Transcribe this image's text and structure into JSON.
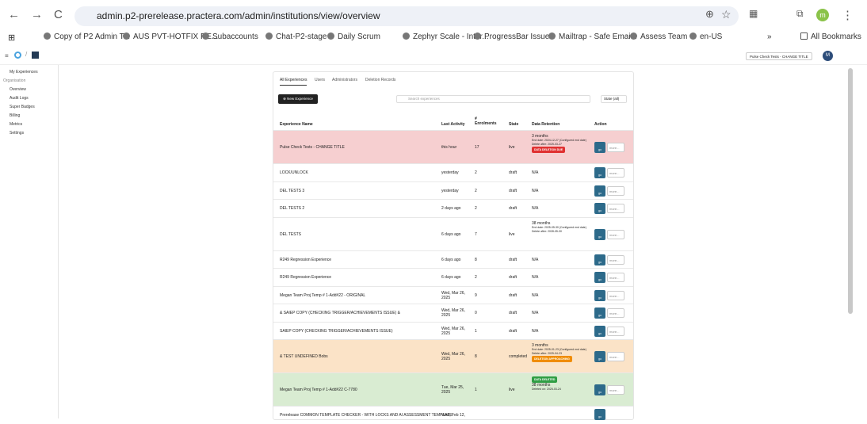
{
  "browser": {
    "url": "admin.p2-prerelease.practera.com/admin/institutions/view/overview",
    "bookmarks": [
      "Copy of P2 Admin T...",
      "AUS PVT-HOTFIX RE...",
      "Subaccounts",
      "Chat-P2-stage",
      "Daily Scrum",
      "Zephyr Scale - Inter...",
      "ProgressBar Issue",
      "Mailtrap - Safe Emai...",
      "Assess Team",
      "en-US"
    ],
    "all_bookmarks": "All Bookmarks",
    "profile": "m"
  },
  "header": {
    "experience": "Pulse Check Tests - CHANGE TITLE",
    "avatar": "M"
  },
  "sidebar": [
    "My Experiences",
    "Organisation",
    "Overview",
    "Audit Logs",
    "Super Badges",
    "Billing",
    "Metrics",
    "Settings"
  ],
  "tabs": [
    "All Experiences",
    "Users",
    "Administrators",
    "Deletion Records"
  ],
  "toolbar": {
    "new_button": "New Experience",
    "search_placeholder": "Search experiences",
    "state_filter": "State (all)"
  },
  "table": {
    "columns": [
      "Experience Name",
      "Last Activity",
      "# Enrolments",
      "State",
      "Data Retention",
      "Action"
    ],
    "actions": {
      "go": "go",
      "more": "more..."
    },
    "rows": [
      {
        "name": "Pulse Check Tests - CHANGE TITLE",
        "last_activity": "this hour",
        "enrolments": "17",
        "state": "live",
        "retention": [
          "3 months",
          "End date: 2024-12-27 (Configured end date)",
          "Delete after: 2025-03-27"
        ],
        "badge": "DATA DELETION DUE",
        "badge_color": "#e03131",
        "background": "#f6cfd0"
      },
      {
        "name": "LOCK/UNLOCK",
        "last_activity": "yesterday",
        "enrolments": "2",
        "state": "draft",
        "retention": [
          "N/A"
        ]
      },
      {
        "name": "DEL TESTS 3",
        "last_activity": "yesterday",
        "enrolments": "2",
        "state": "draft",
        "retention": [
          "N/A"
        ]
      },
      {
        "name": "DEL TESTS 2",
        "last_activity": "2 days ago",
        "enrolments": "2",
        "state": "draft",
        "retention": [
          "N/A"
        ]
      },
      {
        "name": "DEL TESTS",
        "last_activity": "6 days ago",
        "enrolments": "7",
        "state": "live",
        "retention": [
          "38 months",
          "End date: 2025-05-30 (Configured end date)",
          "Delete after: 2028-05-30"
        ]
      },
      {
        "name": "R249 Regression Experience",
        "last_activity": "6 days ago",
        "enrolments": "8",
        "state": "draft",
        "retention": [
          "N/A"
        ]
      },
      {
        "name": "R249 Regression Experience",
        "last_activity": "6 days ago",
        "enrolments": "2",
        "state": "draft",
        "retention": [
          "N/A"
        ]
      },
      {
        "name": "Megan Team Proj Temp # 1-Add#22 - ORIGINAL",
        "last_activity": "Wed, Mar 26, 2025",
        "enrolments": "9",
        "state": "draft",
        "retention": [
          "N/A"
        ]
      },
      {
        "name": "& SAIEP COPY (CHECKING TRIGGER/ACHIEVEMENTS ISSUE) &",
        "last_activity": "Wed, Mar 26, 2025",
        "enrolments": "0",
        "state": "draft",
        "retention": [
          "N/A"
        ]
      },
      {
        "name": "SAIEP COPY (CHECKING TRIGGER/ACHIEVEMENTS ISSUE)",
        "last_activity": "Wed, Mar 26, 2025",
        "enrolments": "1",
        "state": "draft",
        "retention": [
          "N/A"
        ]
      },
      {
        "name": "& TEST UNDEFINED Bobs",
        "last_activity": "Wed, Mar 26, 2025",
        "enrolments": "8",
        "state": "completed",
        "retention": [
          "3 months",
          "End date: 2025-01-23 (Configured end date)",
          "Delete after: 2025-04-23"
        ],
        "badge": "DELETION APPROACHING",
        "badge_color": "#f08c00",
        "background": "#fbe3c7"
      },
      {
        "name": "Megan Team Proj Temp # 1-Add#22 C-7780",
        "last_activity": "Tue, Mar 25, 2025",
        "enrolments": "1",
        "state": "live",
        "badge_top": "DATA DELETED",
        "retention": [
          "38 months",
          "Deleted on: 2025-03-24"
        ],
        "badge_color": "#2f9e44",
        "background": "#d9ecd2"
      },
      {
        "name": "Prerelease COMMON TEMPLATE CHECKER - WITH LOCKS AND AI ASSESSMENT TEMPLATE",
        "last_activity": "Wed, Feb 12,",
        "enrolments": "",
        "state": "",
        "retention": []
      }
    ]
  }
}
